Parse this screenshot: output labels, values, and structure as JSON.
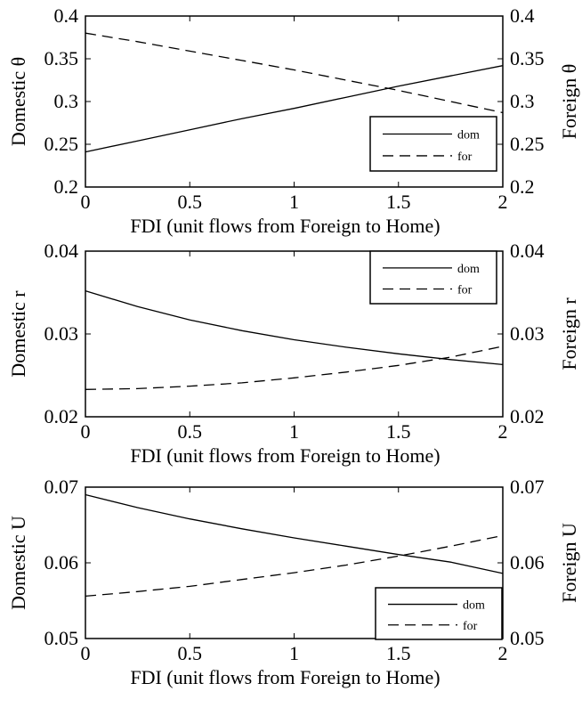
{
  "chart_data": [
    {
      "type": "line",
      "xlabel": "FDI (unit flows from Foreign to Home)",
      "ylabel": "Domestic θ",
      "ylabel_right": "Foreign θ",
      "xlim": [
        0,
        2
      ],
      "ylim": [
        0.2,
        0.4
      ],
      "xticks": [
        "0",
        "0.5",
        "1",
        "1.5",
        "2"
      ],
      "yticks": [
        "0.2",
        "0.25",
        "0.3",
        "0.35",
        "0.4"
      ],
      "legend_position": "lower-right",
      "series": [
        {
          "name": "dom",
          "style": "solid",
          "x": [
            0,
            0.25,
            0.5,
            0.75,
            1,
            1.25,
            1.5,
            1.75,
            2
          ],
          "values": [
            0.241,
            0.254,
            0.267,
            0.28,
            0.292,
            0.305,
            0.318,
            0.33,
            0.342
          ]
        },
        {
          "name": "for",
          "style": "dashed",
          "x": [
            0,
            0.25,
            0.5,
            0.75,
            1,
            1.25,
            1.5,
            1.75,
            2
          ],
          "values": [
            0.38,
            0.37,
            0.359,
            0.348,
            0.337,
            0.325,
            0.313,
            0.3,
            0.287
          ]
        }
      ]
    },
    {
      "type": "line",
      "xlabel": "FDI (unit flows from Foreign to Home)",
      "ylabel": "Domestic r",
      "ylabel_right": "Foreign r",
      "xlim": [
        0,
        2
      ],
      "ylim": [
        0.02,
        0.04
      ],
      "xticks": [
        "0",
        "0.5",
        "1",
        "1.5",
        "2"
      ],
      "yticks": [
        "0.02",
        "0.03",
        "0.04"
      ],
      "legend_position": "top-right",
      "series": [
        {
          "name": "dom",
          "style": "solid",
          "x": [
            0,
            0.25,
            0.5,
            0.75,
            1,
            1.25,
            1.5,
            1.75,
            2
          ],
          "values": [
            0.0352,
            0.0333,
            0.0317,
            0.0304,
            0.0293,
            0.0284,
            0.0276,
            0.0269,
            0.0263
          ]
        },
        {
          "name": "for",
          "style": "dashed",
          "x": [
            0,
            0.25,
            0.5,
            0.75,
            1,
            1.25,
            1.5,
            1.75,
            2
          ],
          "values": [
            0.0233,
            0.0234,
            0.0237,
            0.0241,
            0.0247,
            0.0254,
            0.0262,
            0.0272,
            0.0285
          ]
        }
      ]
    },
    {
      "type": "line",
      "xlabel": "FDI (unit flows from Foreign to Home)",
      "ylabel": "Domestic U",
      "ylabel_right": "Foreign U",
      "xlim": [
        0,
        2
      ],
      "ylim": [
        0.05,
        0.07
      ],
      "xticks": [
        "0",
        "0.5",
        "1",
        "1.5",
        "2"
      ],
      "yticks": [
        "0.05",
        "0.06",
        "0.07"
      ],
      "legend_position": "lower-right",
      "series": [
        {
          "name": "dom",
          "style": "solid",
          "x": [
            0,
            0.25,
            0.5,
            0.75,
            1,
            1.25,
            1.5,
            1.75,
            2
          ],
          "values": [
            0.069,
            0.0673,
            0.0658,
            0.0645,
            0.0633,
            0.0622,
            0.0611,
            0.0601,
            0.0586
          ]
        },
        {
          "name": "for",
          "style": "dashed",
          "x": [
            0,
            0.25,
            0.5,
            0.75,
            1,
            1.25,
            1.5,
            1.75,
            2
          ],
          "values": [
            0.0556,
            0.0562,
            0.0569,
            0.0578,
            0.0587,
            0.0597,
            0.0609,
            0.0622,
            0.0636
          ]
        }
      ]
    }
  ]
}
